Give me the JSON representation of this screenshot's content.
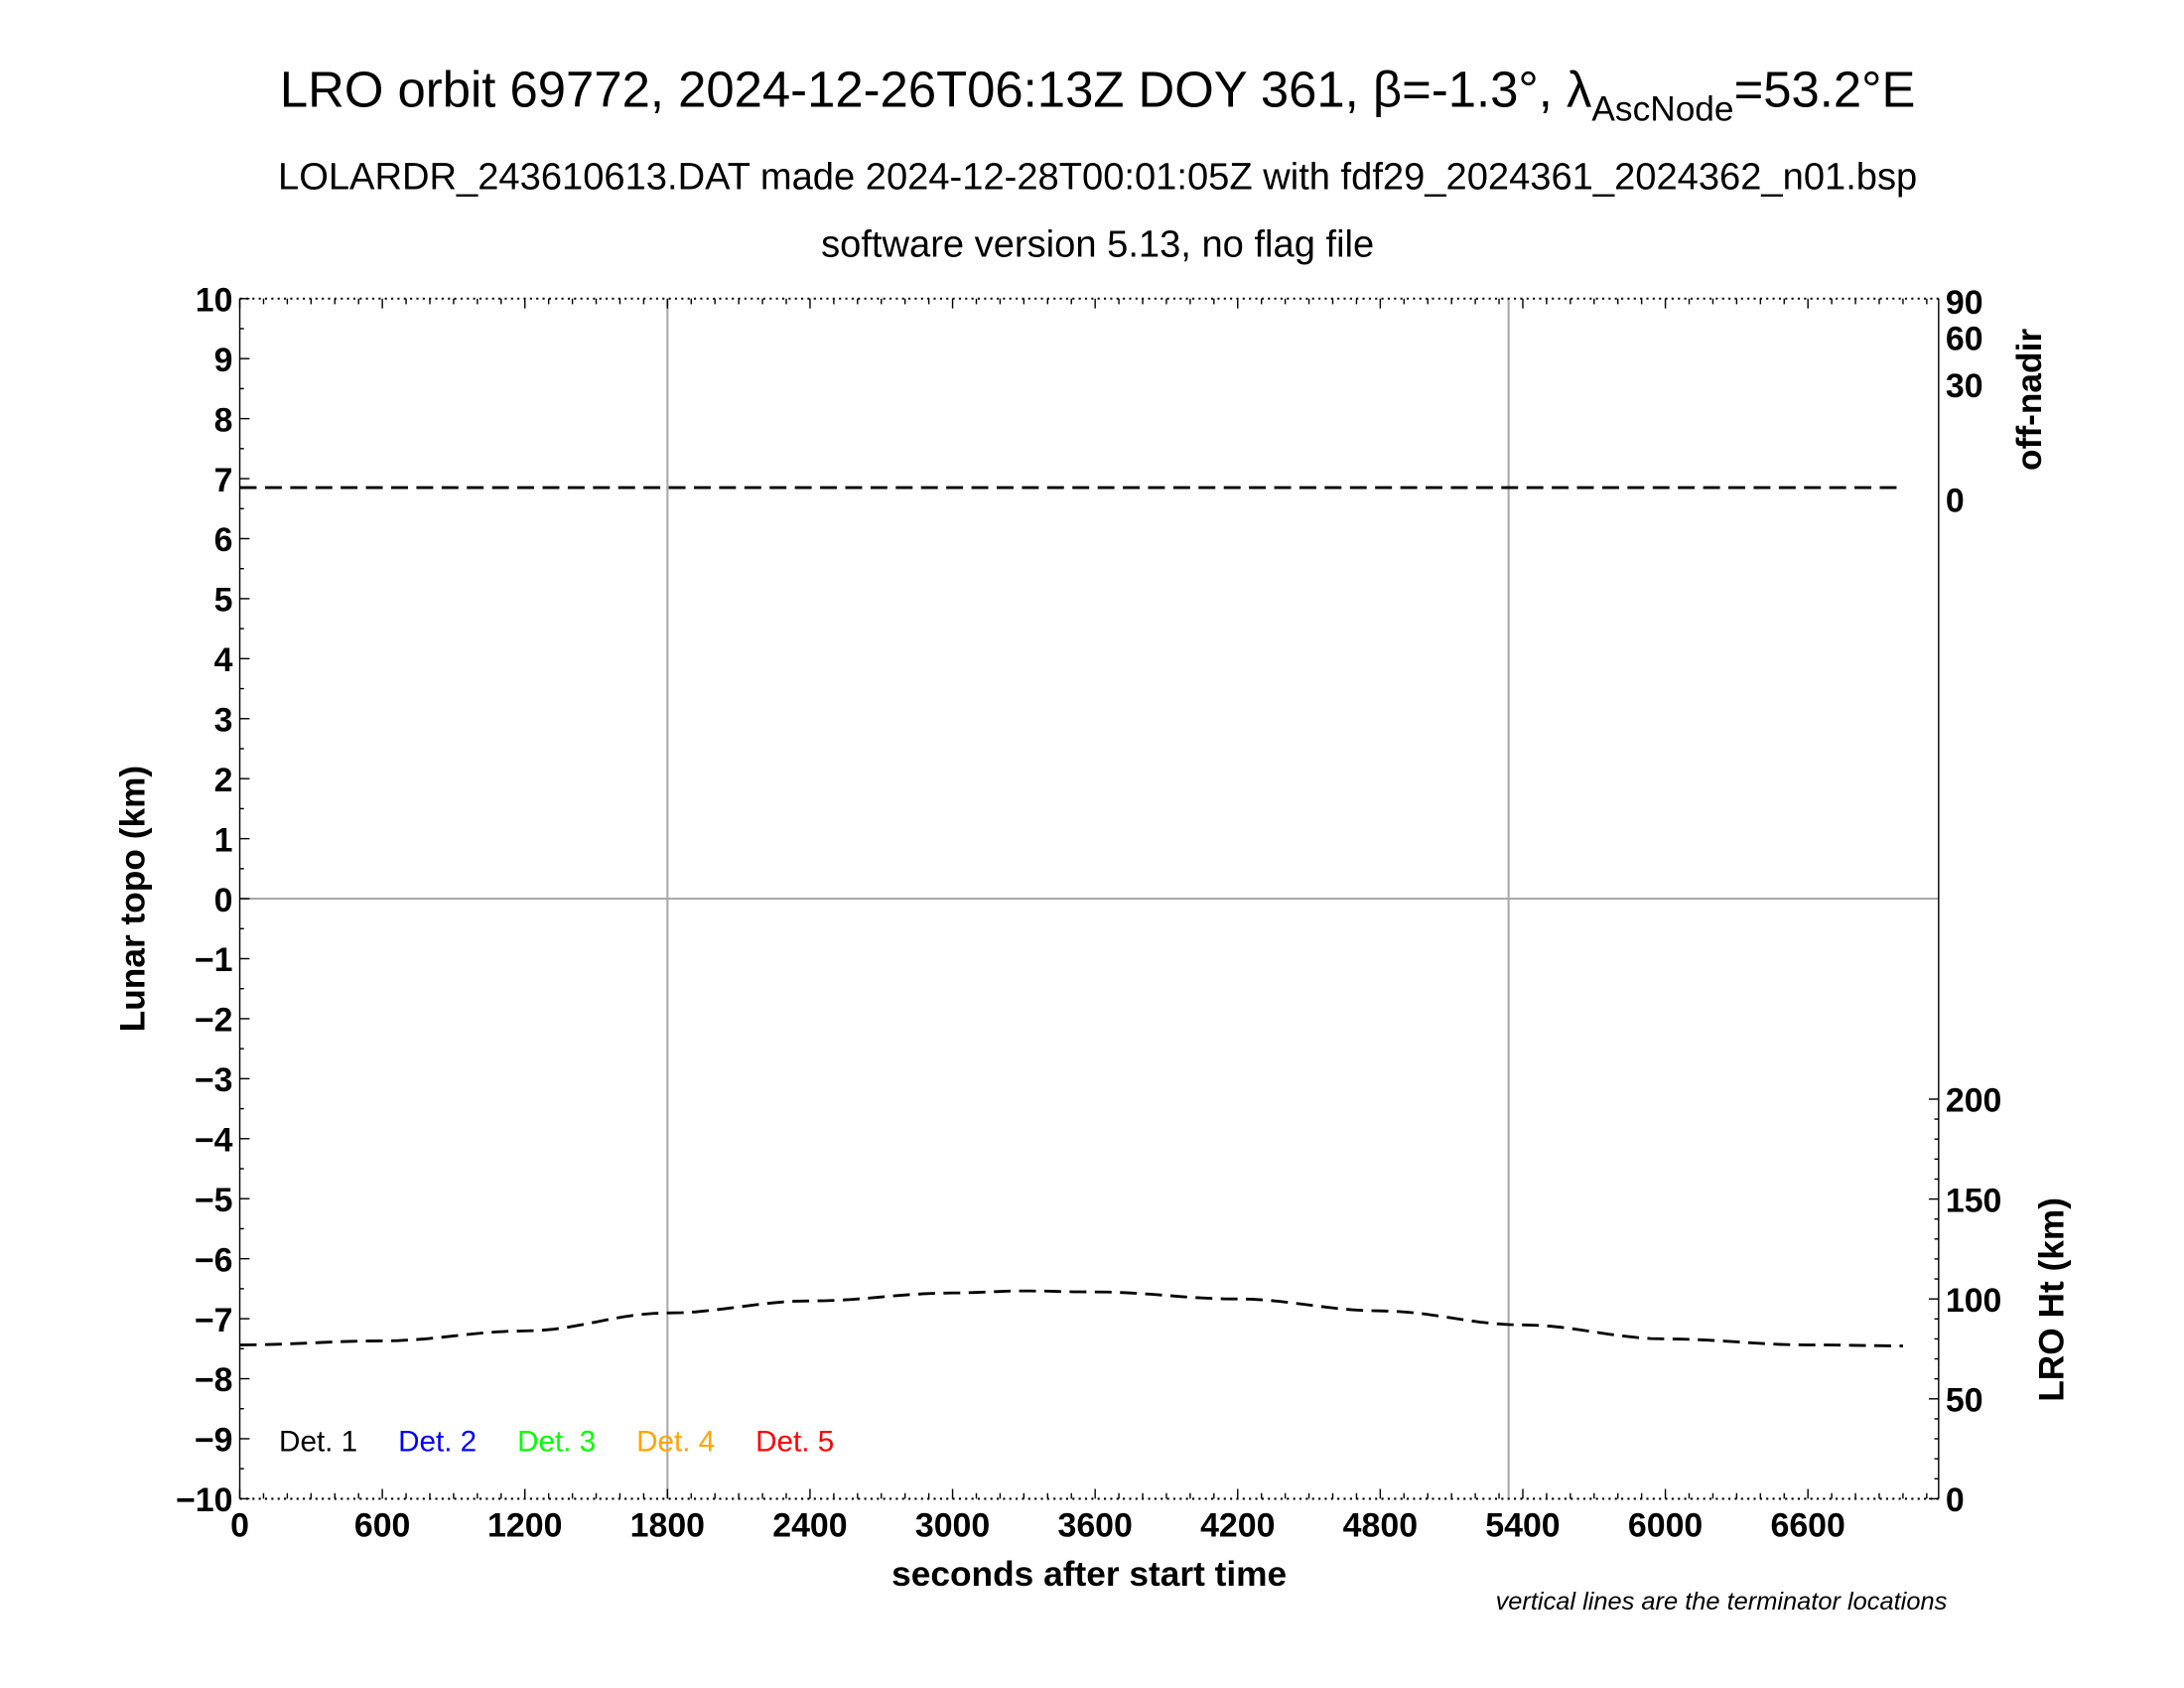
{
  "chart_data": {
    "type": "line",
    "title": "LRO orbit 69772, 2024-12-26T06:13Z DOY 361, β=-1.3°, λ",
    "title_sub": "AscNode",
    "title_end": "=53.2°E",
    "subtitle1": "LOLARDR_243610613.DAT made 2024-12-28T00:01:05Z with fdf29_2024361_2024362_n01.bsp",
    "subtitle2": "software version 5.13, no flag file",
    "xlabel": "seconds after start time",
    "ylabel": "Lunar topo (km)",
    "ylabel_right_top": "off-nadir",
    "ylabel_right_bottom": "LRO Ht (km)",
    "note": "vertical lines are the terminator locations",
    "xlim": [
      0,
      7150
    ],
    "ylim": [
      -10,
      10
    ],
    "x_ticks": [
      "0",
      "600",
      "1200",
      "1800",
      "2400",
      "3000",
      "3600",
      "4200",
      "4800",
      "5400",
      "6000",
      "6600"
    ],
    "y_ticks": [
      "10",
      "9",
      "8",
      "7",
      "6",
      "5",
      "4",
      "3",
      "2",
      "1",
      "0",
      "−1",
      "−2",
      "−3",
      "−4",
      "−5",
      "−6",
      "−7",
      "−8",
      "−9",
      "−10"
    ],
    "offnadir_ticks": [
      "90",
      "60",
      "30",
      "0"
    ],
    "lro_ht_ticks": [
      "200",
      "150",
      "100",
      "50",
      "0"
    ],
    "lro_ht_range": [
      0,
      200
    ],
    "terminators": [
      1800,
      5340
    ],
    "legend": [
      {
        "label": "Det. 1",
        "color": "#000000"
      },
      {
        "label": "Det. 2",
        "color": "#0000ff"
      },
      {
        "label": "Det. 3",
        "color": "#00ff00"
      },
      {
        "label": "Det. 4",
        "color": "#ffa500"
      },
      {
        "label": "Det. 5",
        "color": "#ff0000"
      }
    ],
    "series": [
      {
        "name": "off-nadir (deg)",
        "axis": "offnadir",
        "style": "dashed",
        "x": [
          0,
          1000,
          2000,
          3000,
          4000,
          5000,
          6000,
          7000
        ],
        "y": [
          0.3,
          0.3,
          0.3,
          0.3,
          0.3,
          0.3,
          0.3,
          0.3
        ]
      },
      {
        "name": "LRO Ht (km)",
        "axis": "lro_ht",
        "style": "dashed",
        "x": [
          0,
          600,
          1200,
          1800,
          2400,
          3000,
          3300,
          3600,
          4200,
          4800,
          5400,
          6000,
          6600,
          7000
        ],
        "y": [
          77,
          79,
          84,
          93,
          99,
          103,
          104,
          103.5,
          100,
          94,
          87,
          80,
          77,
          76.5
        ]
      }
    ]
  }
}
